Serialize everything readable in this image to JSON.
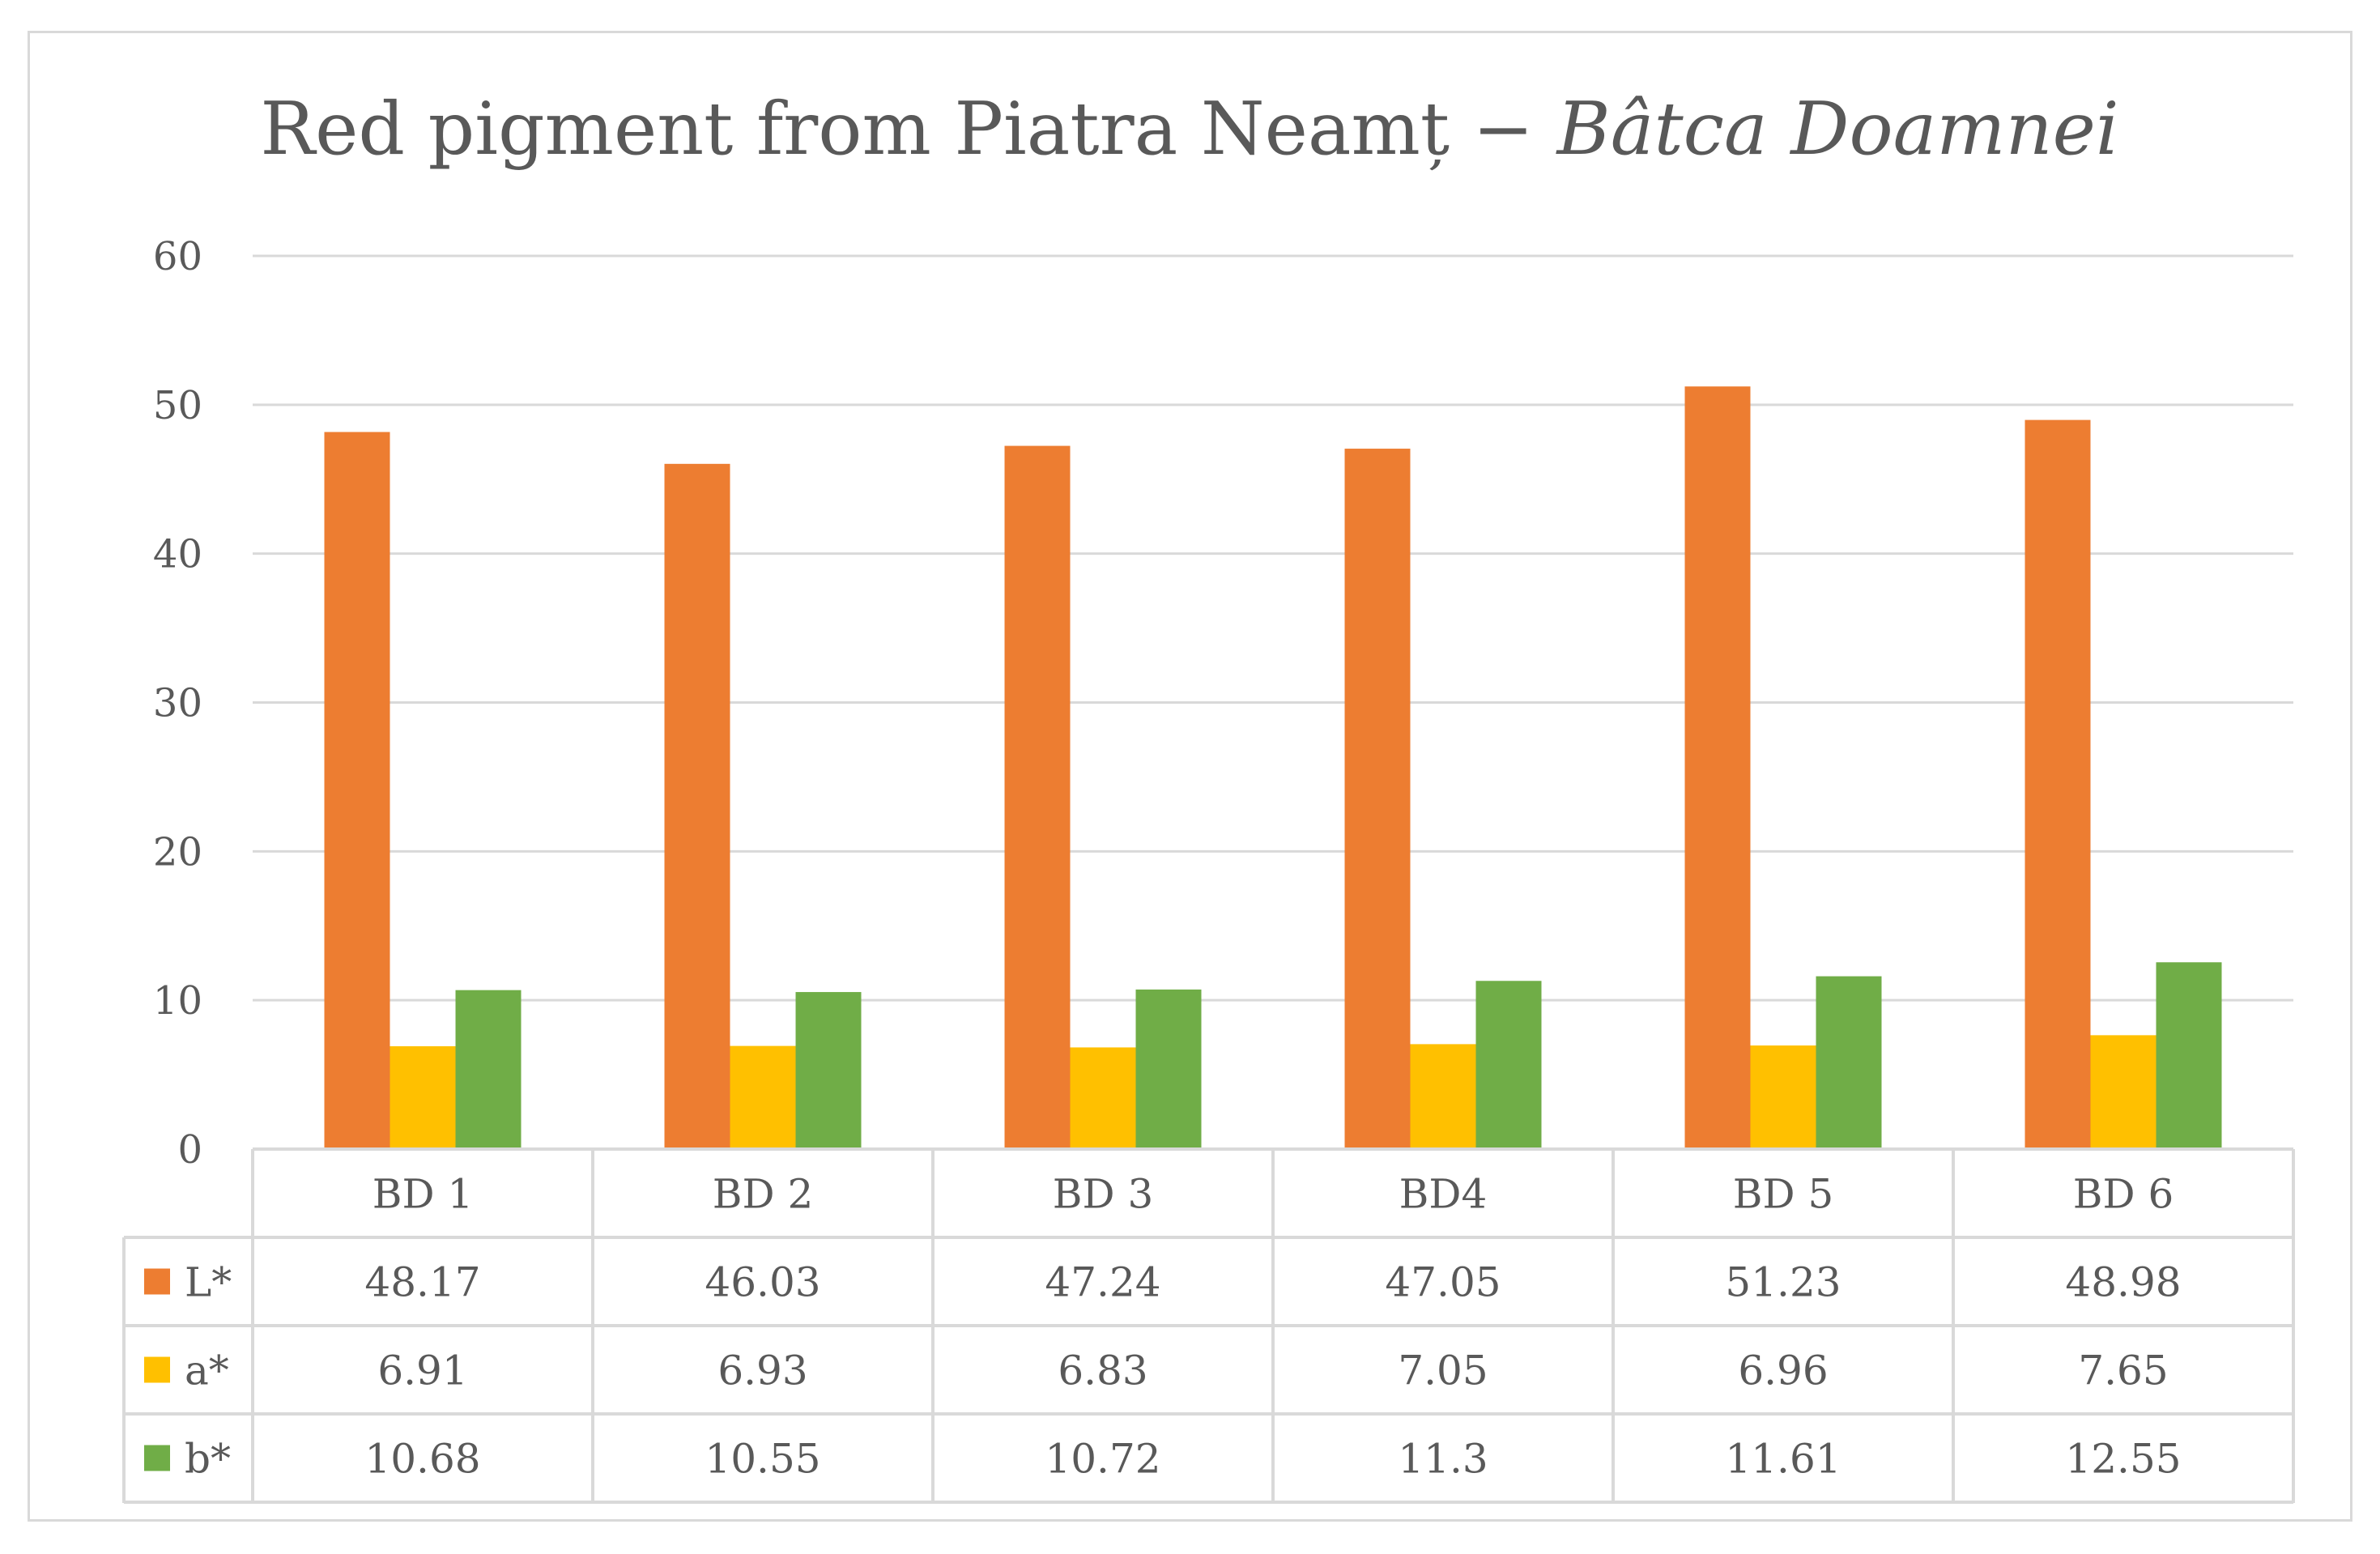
{
  "chart_data": {
    "type": "bar",
    "title_main": "Red  pigment from Piatra Neamț − ",
    "title_italic": "Bâtca Doamnei",
    "categories": [
      "BD 1",
      "BD 2",
      "BD 3",
      "BD4",
      "BD 5",
      "BD 6"
    ],
    "series": [
      {
        "name": "L*",
        "color": "#ed7d31",
        "values": [
          48.17,
          46.03,
          47.24,
          47.05,
          51.23,
          48.98
        ],
        "labels": [
          "48.17",
          "46.03",
          "47.24",
          "47.05",
          "51.23",
          "48.98"
        ]
      },
      {
        "name": "a*",
        "color": "#ffc000",
        "values": [
          6.91,
          6.93,
          6.83,
          7.05,
          6.96,
          7.65
        ],
        "labels": [
          "6.91",
          "6.93",
          "6.83",
          "7.05",
          "6.96",
          "7.65"
        ]
      },
      {
        "name": "b*",
        "color": "#70ad47",
        "values": [
          10.68,
          10.55,
          10.72,
          11.3,
          11.61,
          12.55
        ],
        "labels": [
          "10.68",
          "10.55",
          "10.72",
          "11.3",
          "11.61",
          "12.55"
        ]
      }
    ],
    "ylim": [
      0,
      60
    ],
    "yticks": [
      "0",
      "10",
      "20",
      "30",
      "40",
      "50",
      "60"
    ],
    "grid": true,
    "legend": "data-table",
    "xlabel": "",
    "ylabel": ""
  }
}
